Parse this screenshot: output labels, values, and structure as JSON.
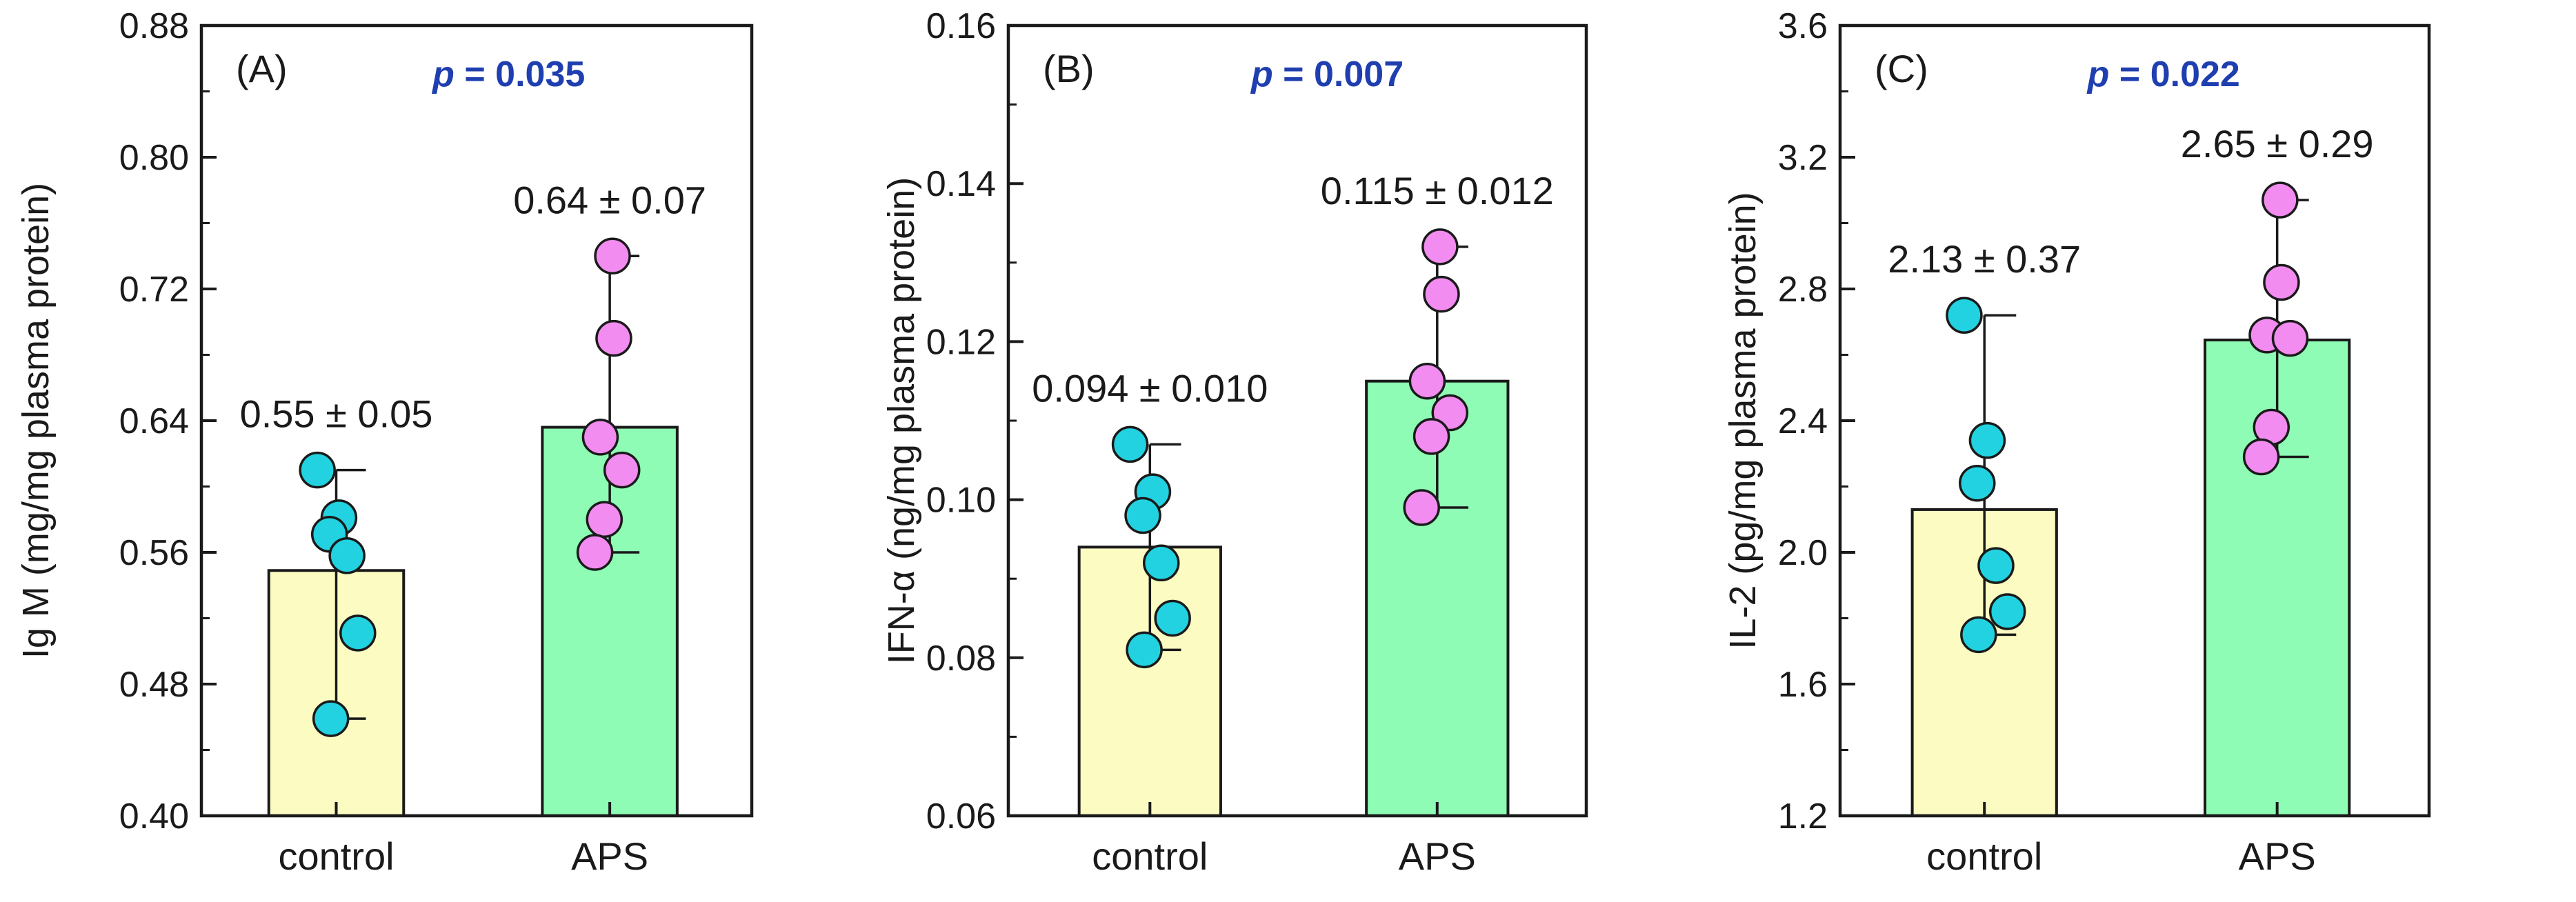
{
  "chart_data": [
    {
      "type": "bar",
      "panel": "(A)",
      "p_value": "p = 0.035",
      "ylabel": "Ig M (mg/mg plasma protein)",
      "ylim": [
        0.4,
        0.88
      ],
      "yticks": [
        "0.40",
        "0.48",
        "0.56",
        "0.64",
        "0.72",
        "0.80",
        "0.88"
      ],
      "categories": [
        "control",
        "APS"
      ],
      "values": [
        0.549,
        0.636
      ],
      "errors": [
        [
          0.459,
          0.61
        ],
        [
          0.56,
          0.74
        ]
      ],
      "labels": [
        "0.55 ± 0.05",
        "0.64 ± 0.07"
      ],
      "points": [
        [
          0.61,
          0.581,
          0.571,
          0.558,
          0.511,
          0.459
        ],
        [
          0.74,
          0.69,
          0.63,
          0.61,
          0.58,
          0.56
        ]
      ]
    },
    {
      "type": "bar",
      "panel": "(B)",
      "p_value": "p = 0.007",
      "ylabel": "IFN-α (ng/mg plasma protein)",
      "ylim": [
        0.06,
        0.16
      ],
      "yticks": [
        "0.06",
        "0.08",
        "0.10",
        "0.12",
        "0.14",
        "0.16"
      ],
      "categories": [
        "control",
        "APS"
      ],
      "values": [
        0.094,
        0.115
      ],
      "errors": [
        [
          0.081,
          0.107
        ],
        [
          0.099,
          0.132
        ]
      ],
      "labels": [
        "0.094 ± 0.010",
        "0.115 ± 0.012"
      ],
      "points": [
        [
          0.107,
          0.101,
          0.098,
          0.092,
          0.085,
          0.081
        ],
        [
          0.132,
          0.126,
          0.115,
          0.111,
          0.108,
          0.099
        ]
      ]
    },
    {
      "type": "bar",
      "panel": "(C)",
      "p_value": "p = 0.022",
      "ylabel": "IL-2 (pg/mg plasma protein)",
      "ylim": [
        1.2,
        3.6
      ],
      "yticks": [
        "1.2",
        "1.6",
        "2.0",
        "2.4",
        "2.8",
        "3.2",
        "3.6"
      ],
      "categories": [
        "control",
        "APS"
      ],
      "values": [
        2.13,
        2.645
      ],
      "errors": [
        [
          1.75,
          2.72
        ],
        [
          2.29,
          3.07
        ]
      ],
      "labels": [
        "2.13 ± 0.37",
        "2.65 ± 0.29"
      ],
      "points": [
        [
          2.72,
          2.34,
          2.21,
          1.96,
          1.82,
          1.75
        ],
        [
          3.07,
          2.82,
          2.66,
          2.65,
          2.38,
          2.29
        ]
      ]
    }
  ],
  "colors": {
    "control_bar": "#fbfbc2",
    "aps_bar": "#8efcb4",
    "control_point": "#22d2e0",
    "aps_point": "#f28cf0",
    "pvalue_text": "#1f3fb0",
    "axis": "#1a1a1a"
  }
}
